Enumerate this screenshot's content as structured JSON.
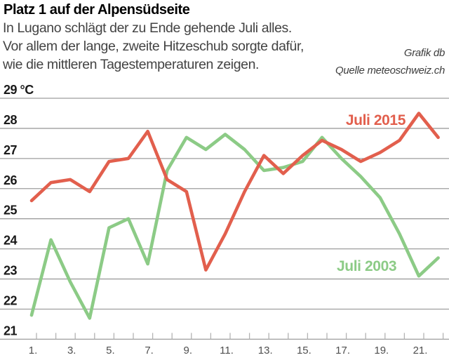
{
  "header": {
    "title": "Platz 1 auf der Alpensüdseite",
    "description_lines": [
      "In Lugano schlägt der zu Ende gehende Juli alles.",
      "Vor allem der lange, zweite Hitzeschub sorgte dafür,",
      "wie die mittleren Tagestemperaturen zeigen."
    ],
    "credits": [
      "Grafik db",
      "Quelle meteoschweiz.ch"
    ]
  },
  "chart_data": {
    "type": "line",
    "x": [
      1,
      2,
      3,
      4,
      5,
      6,
      7,
      8,
      9,
      10,
      11,
      12,
      13,
      14,
      15,
      16,
      17,
      18,
      19,
      20,
      21,
      22
    ],
    "x_tick_labels": [
      "1.",
      "3.",
      "5.",
      "7.",
      "9.",
      "11.",
      "13.",
      "15.",
      "17.",
      "19.",
      "21."
    ],
    "series": [
      {
        "name": "Juli 2015",
        "color": "#e25f4d",
        "values": [
          25.6,
          26.2,
          26.3,
          25.9,
          26.9,
          27.0,
          27.9,
          26.3,
          25.9,
          23.3,
          24.5,
          25.9,
          27.1,
          26.5,
          27.1,
          27.6,
          27.3,
          26.9,
          27.2,
          27.6,
          28.5,
          27.7
        ]
      },
      {
        "name": "Juli 2003",
        "color": "#8ccb86",
        "values": [
          21.8,
          24.3,
          22.9,
          21.7,
          24.7,
          25.0,
          23.5,
          26.6,
          27.7,
          27.3,
          27.8,
          27.3,
          26.6,
          26.7,
          26.9,
          27.7,
          27.0,
          26.4,
          25.7,
          24.5,
          23.1,
          23.7
        ]
      }
    ],
    "ylim": [
      21,
      29
    ],
    "yticks": [
      21,
      22,
      23,
      24,
      25,
      26,
      27,
      28,
      29
    ],
    "y_tick_labels": [
      "21",
      "22",
      "23",
      "24",
      "25",
      "26",
      "27",
      "28",
      "29 °C"
    ],
    "ylabel_unit": "°C",
    "grid": "horizontal",
    "legend_position": "inline-labels",
    "grid_color": "#9e9e9e",
    "tick_color": "#b3b3b3"
  }
}
